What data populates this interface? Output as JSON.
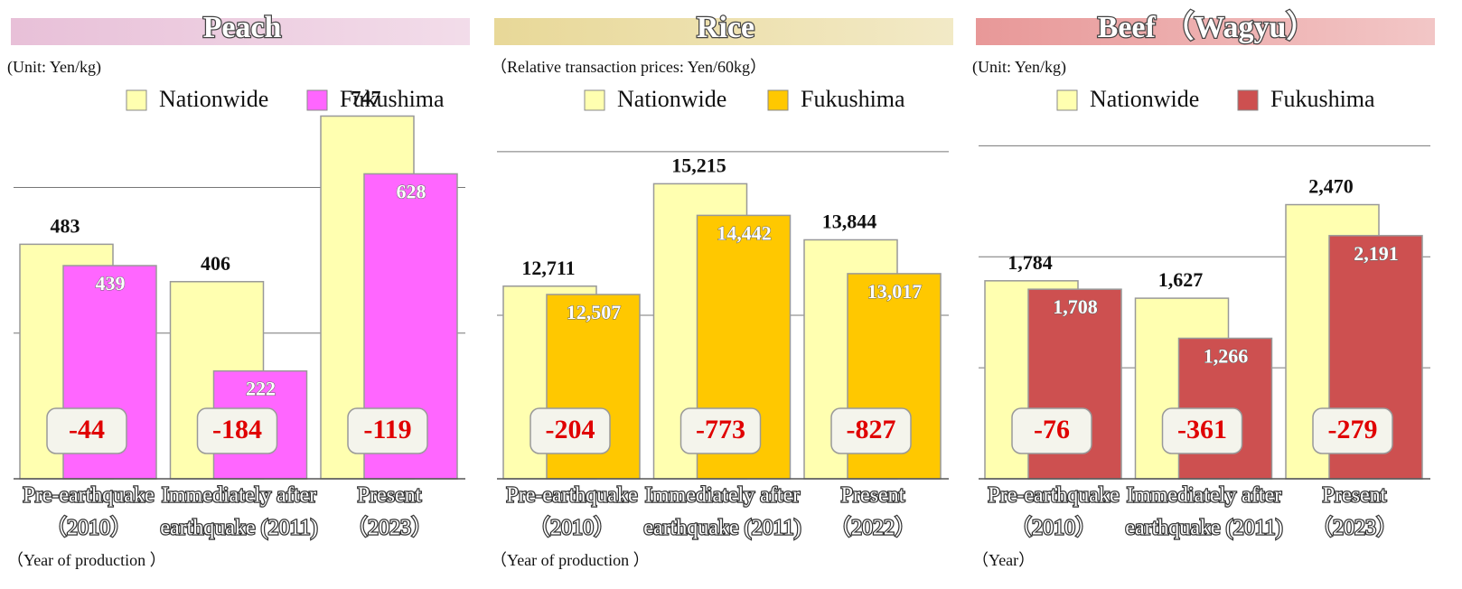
{
  "chart_data": [
    {
      "type": "bar",
      "title": "Peach",
      "unit_note": "(Unit: Yen/kg)",
      "x_note": "（Year of production ）",
      "categories": [
        [
          "Pre-earthquake",
          "（2010）"
        ],
        [
          "Immediately after",
          "earthquake (2011)"
        ],
        [
          "Present",
          "（2023）"
        ]
      ],
      "series": [
        {
          "name": "Nationwide",
          "color": "#ffffb0",
          "values": [
            483,
            406,
            747
          ]
        },
        {
          "name": "Fukushima",
          "color": "#ff66ff",
          "values": [
            439,
            222,
            628
          ]
        }
      ],
      "differences": [
        -44,
        -184,
        -119
      ],
      "ylim": [
        0,
        800
      ],
      "gridlines": [
        300,
        600
      ],
      "band_color": "#e8c0d8"
    },
    {
      "type": "bar",
      "title": "Rice",
      "unit_note": "（Relative transaction prices: Yen/60kg）",
      "x_note": "（Year of production ）",
      "categories": [
        [
          "Pre-earthquake",
          "（2010）"
        ],
        [
          "Immediately after",
          "earthquake (2011)"
        ],
        [
          "Present",
          "（2022）"
        ]
      ],
      "series": [
        {
          "name": "Nationwide",
          "color": "#ffffb0",
          "values": [
            12711,
            15215,
            13844
          ],
          "value_labels": [
            "12,711",
            "15,215",
            "13,844"
          ]
        },
        {
          "name": "Fukushima",
          "color": "#ffc800",
          "values": [
            12507,
            14442,
            13017
          ],
          "value_labels": [
            "12,507",
            "14,442",
            "13,017"
          ]
        }
      ],
      "differences": [
        -204,
        -773,
        -827
      ],
      "ylim": [
        8000,
        17500
      ],
      "gridlines": [
        12000,
        16000
      ],
      "band_color": "#e8d898"
    },
    {
      "type": "bar",
      "title": "Beef （Wagyu）",
      "unit_note": "(Unit: Yen/kg)",
      "x_note": "（Year）",
      "categories": [
        [
          "Pre-earthquake",
          "（2010）"
        ],
        [
          "Immediately after",
          "earthquake (2011)"
        ],
        [
          "Present",
          "（2023）"
        ]
      ],
      "series": [
        {
          "name": "Nationwide",
          "color": "#ffffb0",
          "values": [
            1784,
            1627,
            2470
          ],
          "value_labels": [
            "1,784",
            "1,627",
            "2,470"
          ]
        },
        {
          "name": "Fukushima",
          "color": "#cd5050",
          "values": [
            1708,
            1266,
            2191
          ],
          "value_labels": [
            "1,708",
            "1,266",
            "2,191"
          ]
        }
      ],
      "differences": [
        -76,
        -361,
        -279
      ],
      "ylim": [
        0,
        3500
      ],
      "gridlines": [
        1000,
        2000,
        3000
      ],
      "band_color": "#e89898"
    }
  ]
}
